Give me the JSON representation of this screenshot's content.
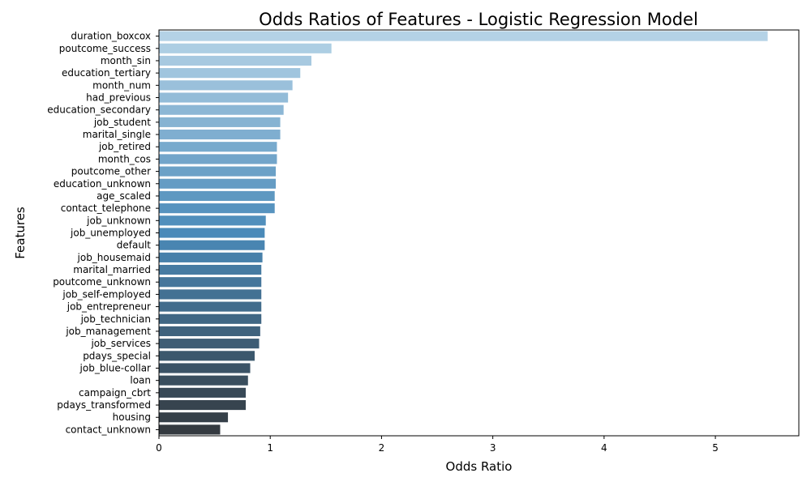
{
  "chart_data": {
    "type": "bar",
    "orientation": "horizontal",
    "title": "Odds Ratios of Features - Logistic Regression Model",
    "xlabel": "Odds Ratio",
    "ylabel": "Features",
    "xlim": [
      0,
      5.75
    ],
    "xticks": [
      "0",
      "1",
      "2",
      "3",
      "4",
      "5"
    ],
    "grid": false,
    "legend": "none",
    "palette": {
      "start": "#b4d2e6",
      "mid": "#4a8ab9",
      "end": "#343a40"
    },
    "categories": [
      "duration_boxcox",
      "poutcome_success",
      "month_sin",
      "education_tertiary",
      "month_num",
      "had_previous",
      "education_secondary",
      "job_student",
      "marital_single",
      "job_retired",
      "month_cos",
      "poutcome_other",
      "education_unknown",
      "age_scaled",
      "contact_telephone",
      "job_unknown",
      "job_unemployed",
      "default",
      "job_housemaid",
      "marital_married",
      "poutcome_unknown",
      "job_self-employed",
      "job_entrepreneur",
      "job_technician",
      "job_management",
      "job_services",
      "pdays_special",
      "job_blue-collar",
      "loan",
      "campaign_cbrt",
      "pdays_transformed",
      "housing",
      "contact_unknown"
    ],
    "values": [
      5.47,
      1.55,
      1.37,
      1.27,
      1.2,
      1.16,
      1.12,
      1.09,
      1.09,
      1.06,
      1.06,
      1.05,
      1.05,
      1.04,
      1.04,
      0.96,
      0.95,
      0.95,
      0.93,
      0.92,
      0.92,
      0.92,
      0.92,
      0.92,
      0.91,
      0.9,
      0.86,
      0.82,
      0.8,
      0.78,
      0.78,
      0.62,
      0.55
    ]
  }
}
